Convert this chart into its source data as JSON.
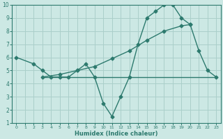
{
  "line1_x": [
    0,
    2,
    3,
    4,
    5,
    6,
    7,
    8,
    9,
    10,
    11,
    12,
    13,
    14,
    15,
    16,
    17,
    18,
    19,
    20,
    21,
    22,
    23
  ],
  "line1_y": [
    6,
    5.5,
    5,
    4.5,
    4.5,
    4.5,
    5,
    5.5,
    4.5,
    2.5,
    1.5,
    3,
    4.5,
    7,
    9,
    9.5,
    10,
    10,
    9,
    8.5,
    6.5,
    5,
    4.5
  ],
  "line2_x": [
    3,
    5,
    7,
    9,
    11,
    13,
    15,
    17,
    19,
    20
  ],
  "line2_y": [
    4.5,
    4.7,
    5.0,
    5.3,
    5.9,
    6.5,
    7.3,
    8.0,
    8.4,
    8.5
  ],
  "line3_x": [
    3,
    23
  ],
  "line3_y": [
    4.5,
    4.5
  ],
  "color": "#2d7a6e",
  "bg_color": "#cce8e4",
  "grid_color": "#aacfca",
  "xlabel": "Humidex (Indice chaleur)",
  "xlim": [
    -0.5,
    23.5
  ],
  "ylim": [
    1,
    10
  ],
  "xticks": [
    0,
    1,
    2,
    3,
    4,
    5,
    6,
    7,
    8,
    9,
    10,
    11,
    12,
    13,
    14,
    15,
    16,
    17,
    18,
    19,
    20,
    21,
    22,
    23
  ],
  "yticks": [
    1,
    2,
    3,
    4,
    5,
    6,
    7,
    8,
    9,
    10
  ],
  "marker": "D",
  "markersize": 2.5,
  "linewidth": 1.0,
  "xlabel_fontsize": 6.0,
  "tick_fontsize_x": 4.5,
  "tick_fontsize_y": 5.5
}
